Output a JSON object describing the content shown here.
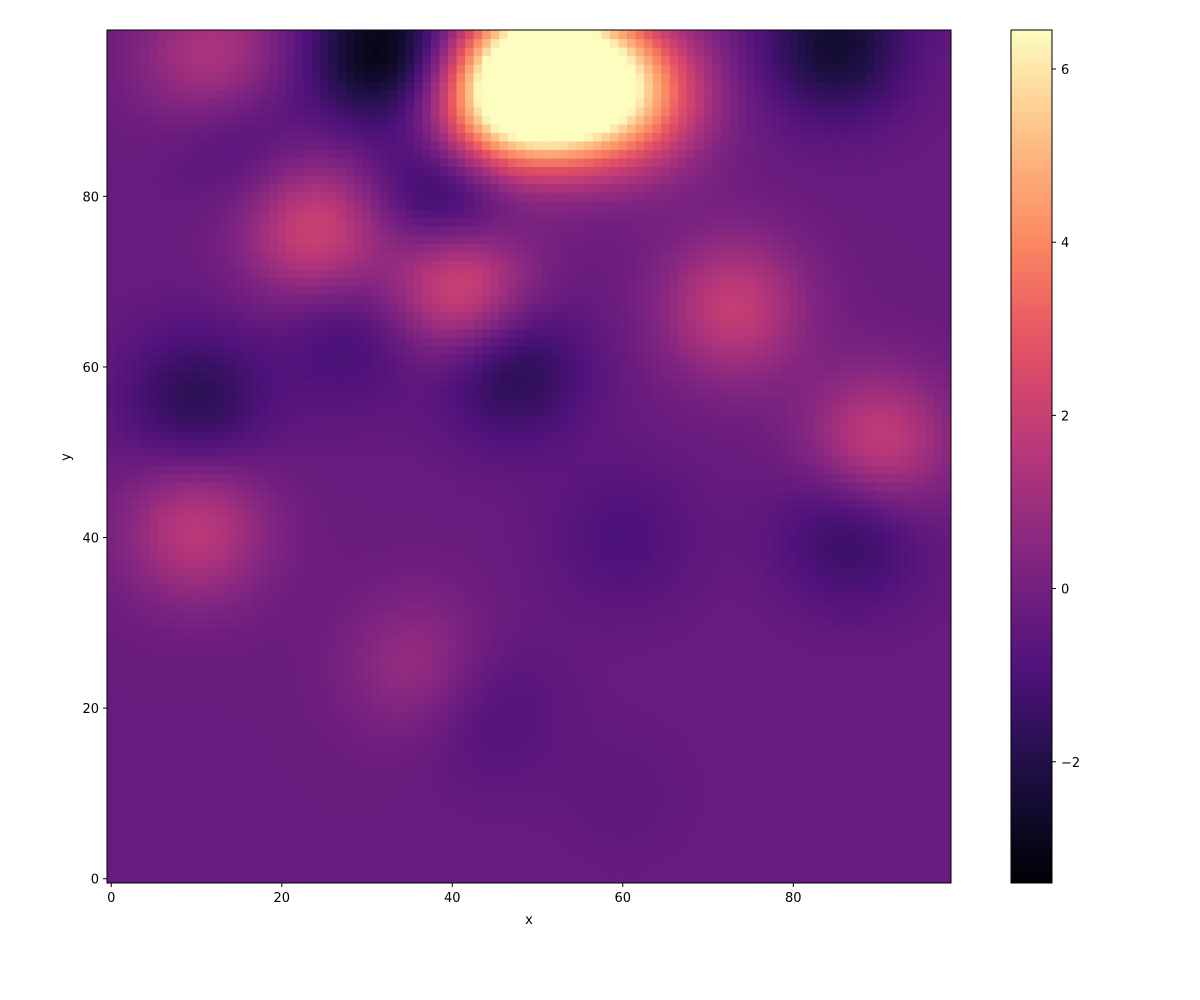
{
  "chart_data": {
    "type": "heatmap",
    "title": "",
    "xlabel": "x",
    "ylabel": "y",
    "xlim": [
      -0.5,
      98.5
    ],
    "ylim": [
      -0.5,
      99.5
    ],
    "x_ticks": [
      0,
      20,
      40,
      60,
      80
    ],
    "y_ticks": [
      0,
      20,
      40,
      60,
      80
    ],
    "x_tick_labels": [
      "0",
      "20",
      "40",
      "60",
      "80"
    ],
    "y_tick_labels": [
      "0",
      "20",
      "40",
      "60",
      "80"
    ],
    "grid_size": [
      99,
      100
    ],
    "colormap": "magma",
    "colorbar": {
      "range": [
        -3.4,
        6.45
      ],
      "ticks": [
        -2,
        0,
        2,
        4,
        6
      ],
      "tick_labels": [
        "−2",
        "0",
        "2",
        "4",
        "6"
      ]
    },
    "value_range": [
      -3.4,
      6.45
    ],
    "features": [
      {
        "x": 50,
        "y": 95,
        "value": 6.0
      },
      {
        "x": 55,
        "y": 93,
        "value": 4.5
      },
      {
        "x": 45,
        "y": 90,
        "value": 4.0
      },
      {
        "x": 62,
        "y": 92,
        "value": 3.0
      },
      {
        "x": 41,
        "y": 70,
        "value": 2.8
      },
      {
        "x": 24,
        "y": 76,
        "value": 2.2
      },
      {
        "x": 73,
        "y": 67,
        "value": 1.9
      },
      {
        "x": 90,
        "y": 51,
        "value": 2.0
      },
      {
        "x": 10,
        "y": 41,
        "value": 1.7
      },
      {
        "x": 12,
        "y": 96,
        "value": 1.6
      },
      {
        "x": 36,
        "y": 25,
        "value": 0.9
      },
      {
        "x": 32,
        "y": 97,
        "value": -3.2
      },
      {
        "x": 85,
        "y": 98,
        "value": -2.5
      },
      {
        "x": 40,
        "y": 80,
        "value": -2.6
      },
      {
        "x": 47,
        "y": 60,
        "value": -2.0
      },
      {
        "x": 10,
        "y": 56,
        "value": -1.8
      },
      {
        "x": 87,
        "y": 41,
        "value": -1.7
      },
      {
        "x": 15,
        "y": 88,
        "value": -1.2
      },
      {
        "x": 28,
        "y": 64,
        "value": -1.3
      },
      {
        "x": 44,
        "y": 20,
        "value": -1.0
      },
      {
        "x": 60,
        "y": 40,
        "value": -1.0
      },
      {
        "x": 60,
        "y": 10,
        "value": -0.5
      }
    ]
  }
}
